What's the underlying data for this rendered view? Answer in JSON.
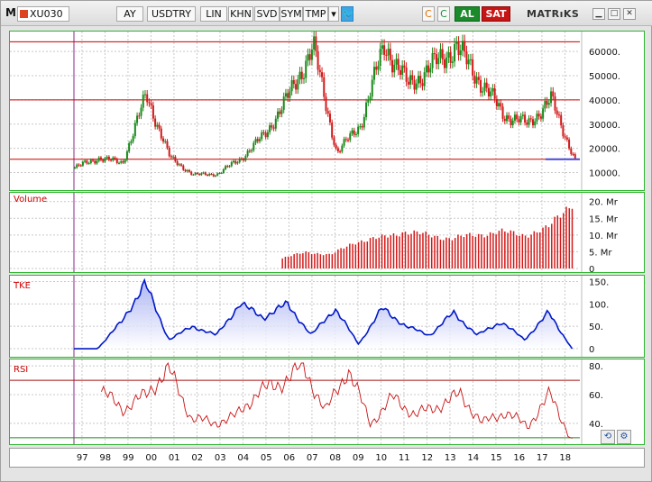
{
  "toolbar": {
    "menu_letter": "M",
    "symbol": "XU030",
    "period": "AY",
    "currency": "USDTRY",
    "scale": "LIN",
    "btn_khn": "KHN",
    "btn_svd": "SVD",
    "btn_sym": "SYM",
    "btn_tmp": "TMP",
    "dropdown_glyph": "▾",
    "twitter_glyph": "🐦",
    "icon_c1": "C",
    "icon_c2": "C",
    "buy_label": "AL",
    "sell_label": "SAT",
    "logo_text": "MATRıKS",
    "win_min": "▁",
    "win_max": "□",
    "win_close": "✕"
  },
  "price_axis": [
    "60000.",
    "50000.",
    "40000.",
    "30000.",
    "20000.",
    "10000."
  ],
  "volume_label": "Volume",
  "volume_axis": [
    "20. Mr",
    "15. Mr",
    "10. Mr",
    "5. Mr",
    "0"
  ],
  "tke_label": "TKE",
  "tke_axis": [
    "150.",
    "100.",
    "50.",
    "0"
  ],
  "rsi_label": "RSI",
  "rsi_axis": [
    "80.",
    "60.",
    "40."
  ],
  "years": [
    "97",
    "98",
    "99",
    "00",
    "01",
    "02",
    "03",
    "04",
    "05",
    "06",
    "07",
    "08",
    "09",
    "10",
    "11",
    "12",
    "13",
    "14",
    "15",
    "16",
    "17",
    "18"
  ],
  "colors": {
    "up": "#1a8a1a",
    "down": "#d21919",
    "tke": "#0018c8",
    "rsi": "#c81414",
    "border": "#2fb52f"
  },
  "nav": {
    "refresh_icon": "⟲",
    "settings_icon": "⚙"
  },
  "chart_data": [
    {
      "type": "line",
      "title": "XU030",
      "x": [
        "97",
        "98",
        "99",
        "00",
        "01",
        "02",
        "03",
        "04",
        "05",
        "06",
        "07",
        "08",
        "09",
        "10",
        "11",
        "12",
        "13",
        "14",
        "15",
        "16",
        "17",
        "18"
      ],
      "series": [
        {
          "values": [
            12000,
            16000,
            14000,
            42000,
            16000,
            9000,
            9500,
            16000,
            26000,
            42000,
            62000,
            18000,
            30000,
            63000,
            46000,
            54000,
            62000,
            48000,
            34000,
            30000,
            40000,
            15000
          ]
        }
      ],
      "ylim": [
        5000,
        66000
      ]
    },
    {
      "type": "bar",
      "title": "Volume",
      "x": [
        "06",
        "07",
        "08",
        "09",
        "10",
        "11",
        "12",
        "13",
        "14",
        "15",
        "16",
        "17",
        "18"
      ],
      "series": [
        {
          "values": [
            3,
            5,
            4,
            8,
            9,
            11,
            10,
            9,
            10,
            11,
            10,
            12,
            20
          ]
        }
      ],
      "ylim": [
        0,
        21
      ]
    },
    {
      "type": "line",
      "title": "TKE",
      "x": [
        "97",
        "98",
        "99",
        "00",
        "01",
        "02",
        "03",
        "04",
        "05",
        "06",
        "07",
        "08",
        "09",
        "10",
        "11",
        "12",
        "13",
        "14",
        "15",
        "16",
        "17",
        "18"
      ],
      "series": [
        {
          "values": [
            0,
            0,
            60,
            145,
            20,
            50,
            30,
            100,
            70,
            100,
            30,
            90,
            10,
            90,
            50,
            30,
            80,
            30,
            60,
            20,
            80,
            0
          ]
        }
      ],
      "ylim": [
        -10,
        155
      ]
    },
    {
      "type": "line",
      "title": "RSI",
      "x": [
        "97",
        "98",
        "99",
        "00",
        "01",
        "02",
        "03",
        "04",
        "05",
        "06",
        "07",
        "08",
        "09",
        "10",
        "11",
        "12",
        "13",
        "14",
        "15",
        "16",
        "17",
        "18"
      ],
      "series": [
        {
          "values": [
            62,
            50,
            60,
            78,
            44,
            40,
            45,
            62,
            68,
            80,
            48,
            78,
            40,
            58,
            46,
            52,
            60,
            40,
            48,
            38,
            60,
            28
          ]
        }
      ],
      "ylim": [
        28,
        82
      ]
    }
  ]
}
